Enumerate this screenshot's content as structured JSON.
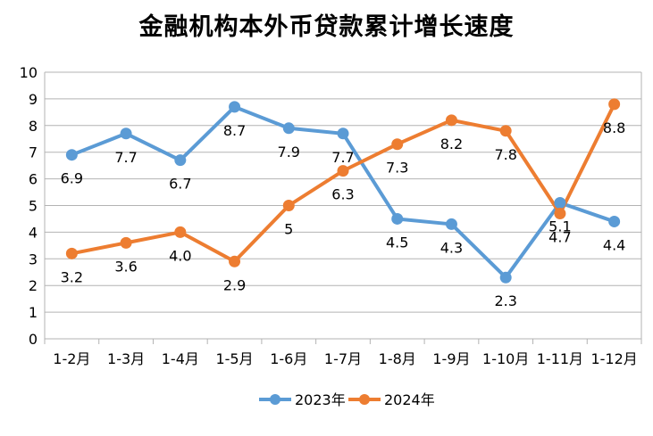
{
  "chart_data": {
    "type": "line",
    "title": "金融机构本外币贷款累计增长速度",
    "categories": [
      "1-2月",
      "1-3月",
      "1-4月",
      "1-5月",
      "1-6月",
      "1-7月",
      "1-8月",
      "1-9月",
      "1-10月",
      "1-11月",
      "1-12月"
    ],
    "series": [
      {
        "name": "2023年",
        "color": "#5b9bd5",
        "values": [
          6.9,
          7.7,
          6.7,
          8.7,
          7.9,
          7.7,
          4.5,
          4.3,
          2.3,
          5.1,
          4.4
        ],
        "labels": [
          "6.9",
          "7.7",
          "6.7",
          "8.7",
          "7.9",
          "7.7",
          "4.5",
          "4.3",
          "2.3",
          "5.1",
          "4.4"
        ]
      },
      {
        "name": "2024年",
        "color": "#ed7d31",
        "values": [
          3.2,
          3.6,
          4.0,
          2.9,
          5.0,
          6.3,
          7.3,
          8.2,
          7.8,
          4.7,
          8.8
        ],
        "labels": [
          "3.2",
          "3.6",
          "4.0",
          "2.9",
          "5",
          "6.3",
          "7.3",
          "8.2",
          "7.8",
          "4.7",
          "8.8"
        ]
      }
    ],
    "xlabel": "",
    "ylabel": "",
    "ylim": [
      0,
      10
    ],
    "yticks": [
      "0",
      "1",
      "2",
      "3",
      "4",
      "5",
      "6",
      "7",
      "8",
      "9",
      "10"
    ],
    "grid": true,
    "legend_position": "bottom"
  }
}
